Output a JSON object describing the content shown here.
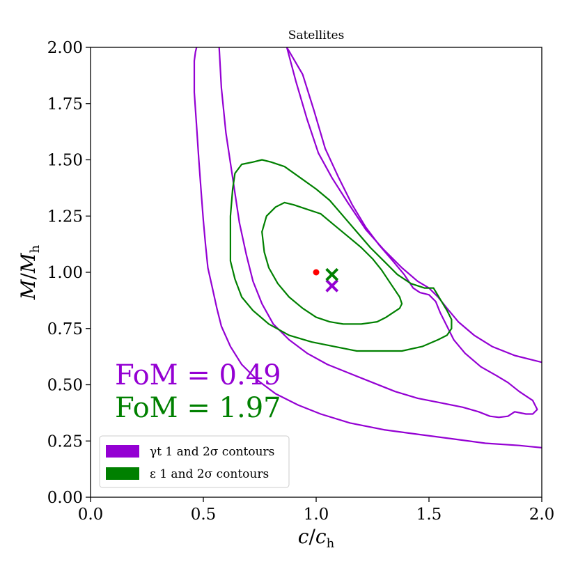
{
  "chart_data": {
    "type": "contour",
    "title": "Satellites",
    "xlabel": "c/c_h",
    "ylabel": "M/M_h",
    "xlim": [
      0.0,
      2.0
    ],
    "ylim": [
      0.0,
      2.0
    ],
    "xticks": [
      "0.0",
      "0.5",
      "1.0",
      "1.5",
      "2.0"
    ],
    "yticks": [
      "0.00",
      "0.25",
      "0.50",
      "0.75",
      "1.00",
      "1.25",
      "1.50",
      "1.75",
      "2.00"
    ],
    "colors": {
      "gamma": "#9400d3",
      "epsilon": "#008000",
      "truth": "#ff0000"
    },
    "truth_point": {
      "x": 1.0,
      "y": 1.0
    },
    "best_fit": [
      {
        "name": "gamma_t",
        "x": 1.07,
        "y": 0.94
      },
      {
        "name": "epsilon",
        "x": 1.07,
        "y": 0.99
      }
    ],
    "fom": [
      {
        "text": "FoM = 0.49",
        "series": "gamma"
      },
      {
        "text": "FoM = 1.97",
        "series": "epsilon"
      }
    ],
    "legend": {
      "position": "lower-left",
      "entries": [
        {
          "series": "gamma",
          "text": "γt 1 and 2σ contours"
        },
        {
          "series": "epsilon",
          "text": "ε 1 and 2σ contours"
        }
      ]
    },
    "series": [
      {
        "name": "gamma_t 1σ contour",
        "color": "#9400d3",
        "points": [
          [
            0.87,
            2.0
          ],
          [
            0.91,
            1.85
          ],
          [
            0.96,
            1.68
          ],
          [
            1.01,
            1.53
          ],
          [
            1.07,
            1.42
          ],
          [
            1.14,
            1.31
          ],
          [
            1.22,
            1.19
          ],
          [
            1.3,
            1.1
          ],
          [
            1.38,
            1.02
          ],
          [
            1.45,
            0.96
          ],
          [
            1.5,
            0.93
          ],
          [
            1.54,
            0.89
          ],
          [
            1.58,
            0.84
          ],
          [
            1.63,
            0.78
          ],
          [
            1.7,
            0.72
          ],
          [
            1.78,
            0.67
          ],
          [
            1.88,
            0.63
          ],
          [
            2.0,
            0.6
          ]
        ]
      },
      {
        "name": "gamma_t 1σ contour inner",
        "color": "#9400d3",
        "points": [
          [
            0.57,
            2.0
          ],
          [
            0.58,
            1.82
          ],
          [
            0.6,
            1.62
          ],
          [
            0.63,
            1.42
          ],
          [
            0.66,
            1.22
          ],
          [
            0.69,
            1.08
          ],
          [
            0.72,
            0.96
          ],
          [
            0.76,
            0.86
          ],
          [
            0.81,
            0.77
          ],
          [
            0.88,
            0.7
          ],
          [
            0.96,
            0.64
          ],
          [
            1.05,
            0.59
          ],
          [
            1.15,
            0.55
          ],
          [
            1.25,
            0.51
          ],
          [
            1.35,
            0.47
          ],
          [
            1.45,
            0.44
          ],
          [
            1.55,
            0.42
          ],
          [
            1.65,
            0.4
          ],
          [
            1.72,
            0.38
          ],
          [
            1.77,
            0.36
          ],
          [
            1.81,
            0.355
          ],
          [
            1.85,
            0.36
          ],
          [
            1.88,
            0.38
          ],
          [
            1.93,
            0.37
          ],
          [
            1.96,
            0.37
          ],
          [
            1.98,
            0.39
          ],
          [
            1.96,
            0.43
          ],
          [
            1.9,
            0.47
          ],
          [
            1.85,
            0.51
          ],
          [
            1.8,
            0.54
          ],
          [
            1.73,
            0.58
          ],
          [
            1.66,
            0.64
          ],
          [
            1.61,
            0.7
          ],
          [
            1.58,
            0.76
          ],
          [
            1.55,
            0.82
          ],
          [
            1.53,
            0.87
          ],
          [
            1.5,
            0.9
          ],
          [
            1.46,
            0.91
          ],
          [
            1.43,
            0.93
          ],
          [
            1.39,
            0.99
          ],
          [
            1.34,
            1.05
          ],
          [
            1.28,
            1.12
          ],
          [
            1.22,
            1.2
          ],
          [
            1.16,
            1.3
          ],
          [
            1.1,
            1.42
          ],
          [
            1.04,
            1.55
          ],
          [
            0.99,
            1.72
          ],
          [
            0.94,
            1.88
          ],
          [
            0.87,
            2.0
          ]
        ]
      },
      {
        "name": "gamma_t 2σ contour",
        "color": "#9400d3",
        "points": [
          [
            0.46,
            1.94
          ],
          [
            0.46,
            1.8
          ],
          [
            0.47,
            1.65
          ],
          [
            0.48,
            1.5
          ],
          [
            0.49,
            1.36
          ],
          [
            0.5,
            1.23
          ],
          [
            0.51,
            1.12
          ],
          [
            0.52,
            1.02
          ],
          [
            0.54,
            0.93
          ],
          [
            0.56,
            0.84
          ],
          [
            0.58,
            0.76
          ],
          [
            0.62,
            0.67
          ],
          [
            0.67,
            0.59
          ],
          [
            0.74,
            0.52
          ],
          [
            0.82,
            0.46
          ],
          [
            0.92,
            0.41
          ],
          [
            1.02,
            0.37
          ],
          [
            1.15,
            0.33
          ],
          [
            1.3,
            0.3
          ],
          [
            1.45,
            0.28
          ],
          [
            1.6,
            0.26
          ],
          [
            1.75,
            0.24
          ],
          [
            1.9,
            0.23
          ],
          [
            2.0,
            0.22
          ]
        ]
      },
      {
        "name": "gamma_t 2σ contour top",
        "color": "#9400d3",
        "points": [
          [
            0.46,
            1.94
          ],
          [
            0.465,
            1.98
          ],
          [
            0.47,
            2.0
          ]
        ]
      },
      {
        "name": "epsilon 1σ contour",
        "color": "#008000",
        "points": [
          [
            0.76,
            1.18
          ],
          [
            0.78,
            1.25
          ],
          [
            0.82,
            1.29
          ],
          [
            0.86,
            1.31
          ],
          [
            0.9,
            1.3
          ],
          [
            0.96,
            1.28
          ],
          [
            1.02,
            1.26
          ],
          [
            1.08,
            1.21
          ],
          [
            1.14,
            1.16
          ],
          [
            1.2,
            1.11
          ],
          [
            1.25,
            1.06
          ],
          [
            1.29,
            1.01
          ],
          [
            1.33,
            0.95
          ],
          [
            1.37,
            0.89
          ],
          [
            1.38,
            0.86
          ],
          [
            1.37,
            0.84
          ],
          [
            1.34,
            0.82
          ],
          [
            1.31,
            0.8
          ],
          [
            1.27,
            0.78
          ],
          [
            1.2,
            0.77
          ],
          [
            1.12,
            0.77
          ],
          [
            1.06,
            0.78
          ],
          [
            1.0,
            0.8
          ],
          [
            0.94,
            0.84
          ],
          [
            0.88,
            0.89
          ],
          [
            0.83,
            0.95
          ],
          [
            0.79,
            1.02
          ],
          [
            0.77,
            1.09
          ],
          [
            0.76,
            1.18
          ]
        ]
      },
      {
        "name": "epsilon 2σ contour",
        "color": "#008000",
        "points": [
          [
            0.63,
            1.37
          ],
          [
            0.64,
            1.44
          ],
          [
            0.67,
            1.48
          ],
          [
            0.72,
            1.49
          ],
          [
            0.76,
            1.5
          ],
          [
            0.8,
            1.49
          ],
          [
            0.86,
            1.47
          ],
          [
            0.93,
            1.42
          ],
          [
            1.0,
            1.37
          ],
          [
            1.06,
            1.32
          ],
          [
            1.12,
            1.25
          ],
          [
            1.18,
            1.18
          ],
          [
            1.24,
            1.11
          ],
          [
            1.3,
            1.05
          ],
          [
            1.36,
            0.99
          ],
          [
            1.42,
            0.95
          ],
          [
            1.48,
            0.93
          ],
          [
            1.52,
            0.93
          ],
          [
            1.55,
            0.88
          ],
          [
            1.58,
            0.83
          ],
          [
            1.6,
            0.79
          ],
          [
            1.6,
            0.75
          ],
          [
            1.58,
            0.72
          ],
          [
            1.54,
            0.7
          ],
          [
            1.47,
            0.67
          ],
          [
            1.38,
            0.65
          ],
          [
            1.28,
            0.65
          ],
          [
            1.18,
            0.65
          ],
          [
            1.08,
            0.67
          ],
          [
            0.98,
            0.69
          ],
          [
            0.88,
            0.72
          ],
          [
            0.79,
            0.77
          ],
          [
            0.72,
            0.83
          ],
          [
            0.67,
            0.89
          ],
          [
            0.64,
            0.97
          ],
          [
            0.62,
            1.05
          ],
          [
            0.62,
            1.15
          ],
          [
            0.62,
            1.25
          ],
          [
            0.63,
            1.37
          ]
        ]
      }
    ]
  }
}
